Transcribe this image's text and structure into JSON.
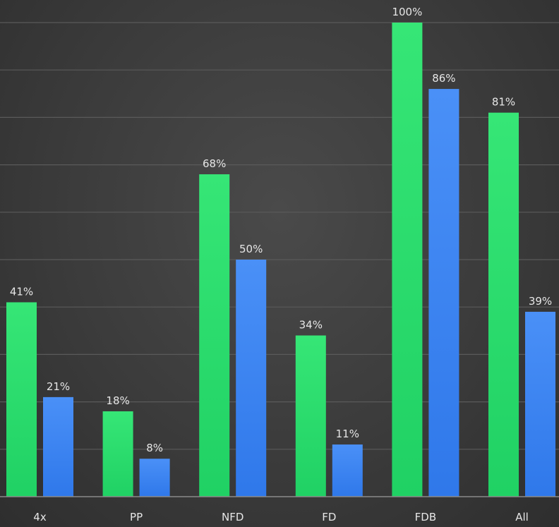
{
  "chart_data": {
    "type": "bar",
    "categories": [
      "4x",
      "PP",
      "NFD",
      "FD",
      "FDB",
      "All"
    ],
    "series": [
      {
        "values": [
          41,
          18,
          68,
          34,
          100,
          81
        ],
        "color": "#2ee06e"
      },
      {
        "values": [
          21,
          8,
          50,
          11,
          86,
          39
        ],
        "color": "#3d86f5"
      }
    ],
    "value_labels": [
      [
        "41%",
        "18%",
        "68%",
        "34%",
        "100%",
        "81%"
      ],
      [
        "21%",
        "8%",
        "50%",
        "11%",
        "86%",
        "39%"
      ]
    ],
    "ylim": [
      0,
      100
    ],
    "grid": true,
    "legend": "none"
  }
}
